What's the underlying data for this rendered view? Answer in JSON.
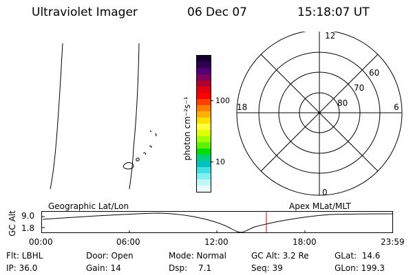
{
  "header": {
    "title": "Ultraviolet Imager",
    "date": "06 Dec 07",
    "time": "15:18:07 UT"
  },
  "colorbar": {
    "unit_label": "photon cm⁻²s⁻¹",
    "tick_100": "100",
    "tick_10": "10",
    "colors": [
      "#1a0030",
      "#300050",
      "#500070",
      "#800060",
      "#b00030",
      "#e00010",
      "#ff0000",
      "#ff4000",
      "#ff8000",
      "#ffb000",
      "#ffe000",
      "#ffff40",
      "#e0ff00",
      "#a0ff00",
      "#60f000",
      "#00e000",
      "#00d080",
      "#00c0c0",
      "#40e0e0",
      "#80f0f0",
      "#c0f8f8",
      "#e8fafa"
    ]
  },
  "polar": {
    "labels": {
      "mlt12": "12",
      "mlt18": "18",
      "mlt6": "6",
      "mlt0": "0",
      "lat60": "60",
      "lat70": "70",
      "lat80": "80"
    }
  },
  "timeline": {
    "ylabel": "GC Alt",
    "left_label": "Geographic Lat/Lon",
    "right_label": "Apex MLat/MLT",
    "y_high": "9.0",
    "y_low": "1.8",
    "xticks": [
      "00:00",
      "06:00",
      "12:00",
      "18:00",
      "23:59"
    ],
    "current_marker_color": "#cc0000"
  },
  "info": {
    "filter": "Flt: LBHL",
    "door": "Door: Open",
    "mode": "Mode: Normal",
    "gc_alt": "GC Alt: 3.2 Re",
    "glat": "GLat:  14.6",
    "ip": "IP: 36.0",
    "gain": "Gain: 14",
    "dsp_label": "Dsp:",
    "dsp_value": "7.1",
    "seq": "Seq: 39",
    "glon": "GLon: 199.3"
  }
}
